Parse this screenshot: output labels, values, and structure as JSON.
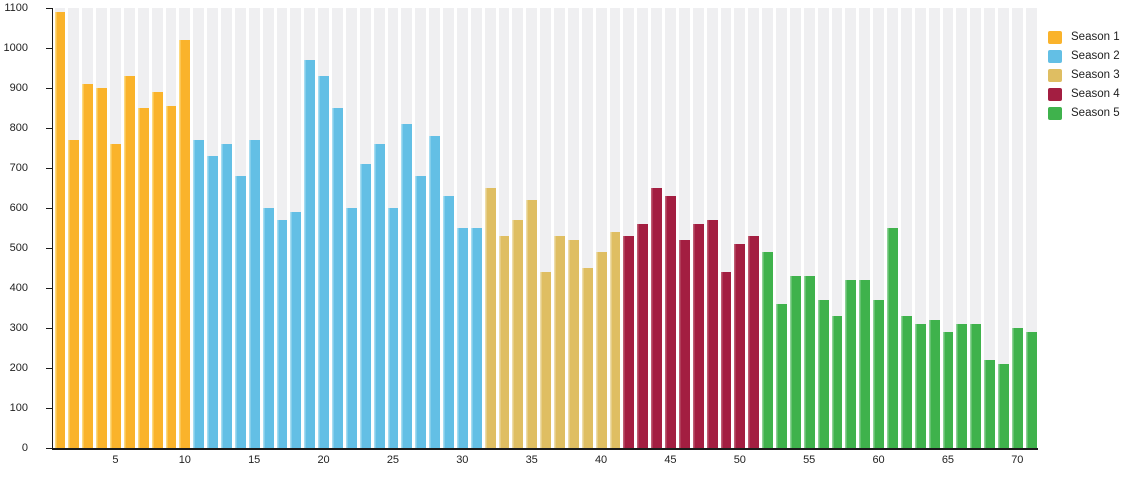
{
  "chart_data": {
    "type": "bar",
    "title": "",
    "xlabel": "",
    "ylabel": "",
    "x_axis": {
      "range": [
        1,
        71
      ],
      "ticks": [
        5,
        10,
        15,
        20,
        25,
        30,
        35,
        40,
        45,
        50,
        55,
        60,
        65,
        70
      ]
    },
    "y_axis": {
      "range": [
        0,
        1100
      ],
      "ticks": [
        0,
        100,
        200,
        300,
        400,
        500,
        600,
        700,
        800,
        900,
        1000,
        1100
      ]
    },
    "legend_position": "top-right",
    "grid": "off",
    "background_stripes": true,
    "series": [
      {
        "name": "Season 1",
        "color": "#FAB32B",
        "edge_highlight": "#FCD97E",
        "start_x": 1,
        "values": [
          1090,
          770,
          910,
          900,
          760,
          930,
          850,
          890,
          855,
          1020
        ]
      },
      {
        "name": "Season 2",
        "color": "#63BFE5",
        "edge_highlight": "#A5DCF1",
        "start_x": 11,
        "values": [
          770,
          730,
          760,
          680,
          770,
          600,
          570,
          590,
          970,
          930,
          850,
          600,
          710,
          760,
          600,
          810,
          680,
          780,
          630,
          550,
          550
        ]
      },
      {
        "name": "Season 3",
        "color": "#DFBE62",
        "edge_highlight": "#EDDCA8",
        "start_x": 32,
        "values": [
          650,
          530,
          570,
          620,
          440,
          530,
          520,
          450,
          490,
          540
        ]
      },
      {
        "name": "Season 4",
        "color": "#A31E41",
        "edge_highlight": "#BE5C72",
        "start_x": 42,
        "values": [
          530,
          560,
          650,
          630,
          520,
          560,
          570,
          440,
          510,
          530
        ]
      },
      {
        "name": "Season 5",
        "color": "#3FB24C",
        "edge_highlight": "#8BD195",
        "start_x": 52,
        "values": [
          490,
          360,
          430,
          430,
          370,
          330,
          420,
          420,
          370,
          550,
          330,
          310,
          320,
          290,
          310,
          310,
          220,
          210,
          300,
          290
        ]
      }
    ]
  },
  "styles": {
    "stripe_color": "#EFEFF1",
    "axis_color": "#1a1a1a",
    "label_color": "#222222",
    "background": "#FFFFFF"
  }
}
